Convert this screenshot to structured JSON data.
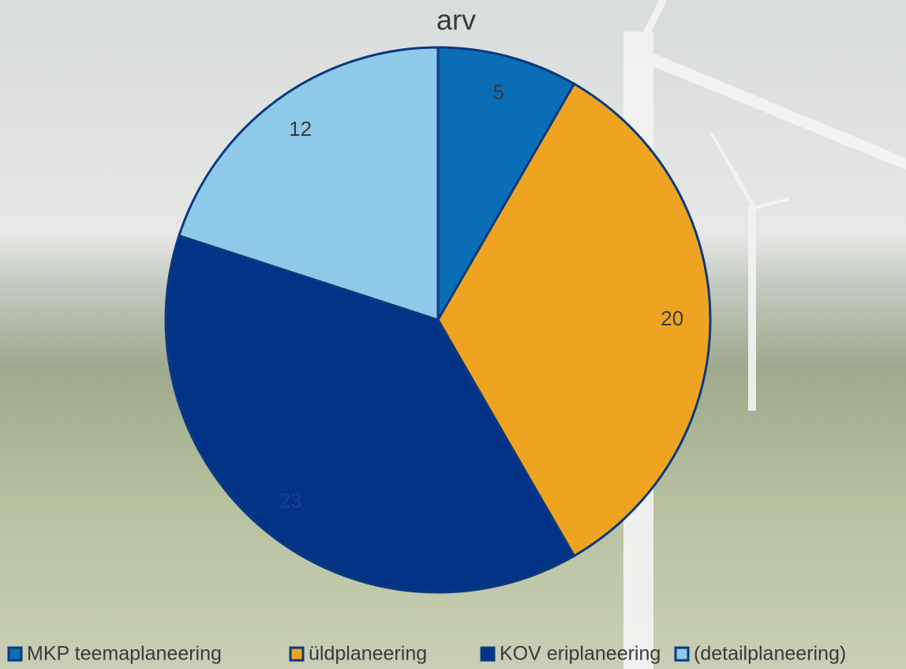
{
  "chart_data": {
    "type": "pie",
    "title": "arv",
    "categories": [
      "MKP teemaplaneering",
      "üldplaneering",
      "KOV eriplaneering",
      "(detailplaneering)"
    ],
    "values": [
      5,
      20,
      23,
      12
    ],
    "colors": [
      "#0a6db5",
      "#efa421",
      "#033387",
      "#8ec9ea"
    ],
    "legend": "bottom"
  }
}
